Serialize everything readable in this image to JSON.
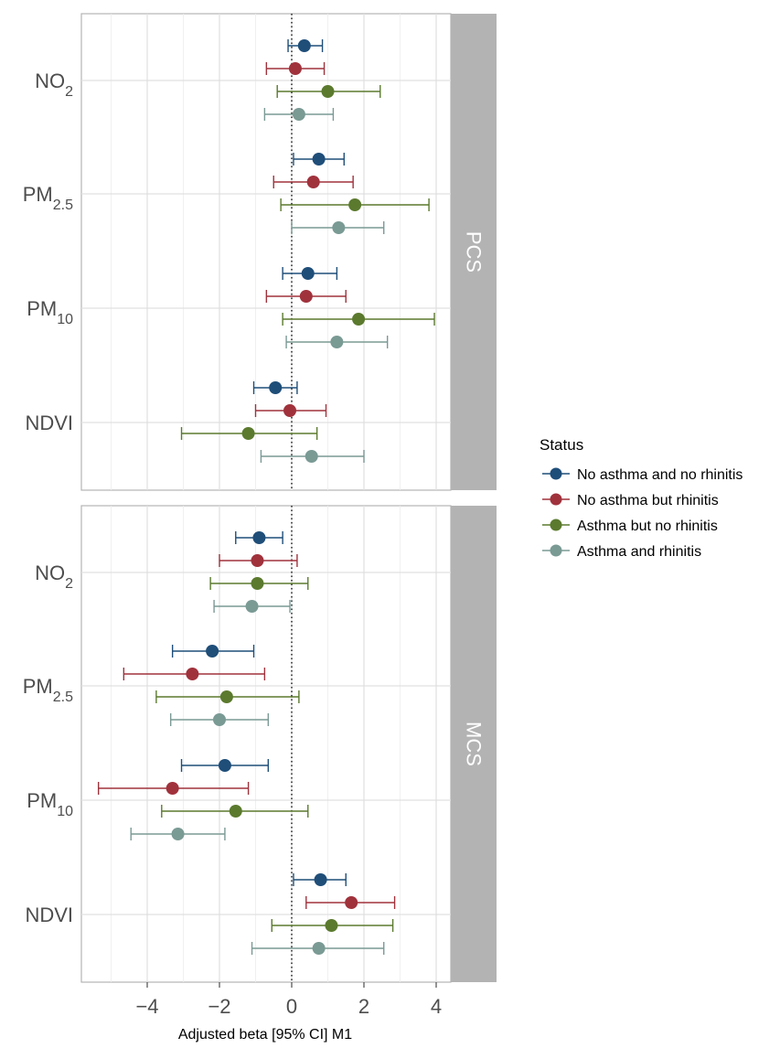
{
  "chart_data": {
    "type": "forest",
    "xlabel": "Adjusted beta [95% CI] M1",
    "xticks": [
      -4,
      -2,
      0,
      2,
      4
    ],
    "xlim": [
      -5.8,
      4.4
    ],
    "reference_line": 0,
    "grid": true,
    "legend": {
      "title": "Status",
      "placement": "right",
      "entries": [
        "No asthma and no rhinitis",
        "No asthma but rhinitis",
        "Asthma but no rhinitis",
        "Asthma and rhinitis"
      ]
    },
    "categories": [
      "NO2",
      "PM2.5",
      "PM10",
      "NDVI"
    ],
    "series_colors": {
      "No asthma and no rhinitis": "#1f4e79",
      "No asthma but rhinitis": "#a0323c",
      "Asthma but no rhinitis": "#5b7a2e",
      "Asthma and rhinitis": "#7a9a94"
    },
    "panels": [
      {
        "name": "PCS",
        "rows": [
          {
            "category": "NO2",
            "points": [
              {
                "series": "No asthma and no rhinitis",
                "estimate": 0.35,
                "lower": -0.1,
                "upper": 0.85
              },
              {
                "series": "No asthma but rhinitis",
                "estimate": 0.1,
                "lower": -0.7,
                "upper": 0.9
              },
              {
                "series": "Asthma but no rhinitis",
                "estimate": 1.0,
                "lower": -0.4,
                "upper": 2.45
              },
              {
                "series": "Asthma and rhinitis",
                "estimate": 0.2,
                "lower": -0.75,
                "upper": 1.15
              }
            ]
          },
          {
            "category": "PM2.5",
            "points": [
              {
                "series": "No asthma and no rhinitis",
                "estimate": 0.75,
                "lower": 0.05,
                "upper": 1.45
              },
              {
                "series": "No asthma but rhinitis",
                "estimate": 0.6,
                "lower": -0.5,
                "upper": 1.7
              },
              {
                "series": "Asthma but no rhinitis",
                "estimate": 1.75,
                "lower": -0.3,
                "upper": 3.8
              },
              {
                "series": "Asthma and rhinitis",
                "estimate": 1.3,
                "lower": 0.0,
                "upper": 2.55
              }
            ]
          },
          {
            "category": "PM10",
            "points": [
              {
                "series": "No asthma and no rhinitis",
                "estimate": 0.45,
                "lower": -0.25,
                "upper": 1.25
              },
              {
                "series": "No asthma but rhinitis",
                "estimate": 0.4,
                "lower": -0.7,
                "upper": 1.5
              },
              {
                "series": "Asthma but no rhinitis",
                "estimate": 1.85,
                "lower": -0.25,
                "upper": 3.95
              },
              {
                "series": "Asthma and rhinitis",
                "estimate": 1.25,
                "lower": -0.15,
                "upper": 2.65
              }
            ]
          },
          {
            "category": "NDVI",
            "points": [
              {
                "series": "No asthma and no rhinitis",
                "estimate": -0.45,
                "lower": -1.05,
                "upper": 0.15
              },
              {
                "series": "No asthma but rhinitis",
                "estimate": -0.05,
                "lower": -1.0,
                "upper": 0.95
              },
              {
                "series": "Asthma but no rhinitis",
                "estimate": -1.2,
                "lower": -3.05,
                "upper": 0.7
              },
              {
                "series": "Asthma and rhinitis",
                "estimate": 0.55,
                "lower": -0.85,
                "upper": 2.0
              }
            ]
          }
        ]
      },
      {
        "name": "MCS",
        "rows": [
          {
            "category": "NO2",
            "points": [
              {
                "series": "No asthma and no rhinitis",
                "estimate": -0.9,
                "lower": -1.55,
                "upper": -0.25
              },
              {
                "series": "No asthma but rhinitis",
                "estimate": -0.95,
                "lower": -2.0,
                "upper": 0.15
              },
              {
                "series": "Asthma but no rhinitis",
                "estimate": -0.95,
                "lower": -2.25,
                "upper": 0.45
              },
              {
                "series": "Asthma and rhinitis",
                "estimate": -1.1,
                "lower": -2.15,
                "upper": -0.05
              }
            ]
          },
          {
            "category": "PM2.5",
            "points": [
              {
                "series": "No asthma and no rhinitis",
                "estimate": -2.2,
                "lower": -3.3,
                "upper": -1.05
              },
              {
                "series": "No asthma but rhinitis",
                "estimate": -2.75,
                "lower": -4.65,
                "upper": -0.75
              },
              {
                "series": "Asthma but no rhinitis",
                "estimate": -1.8,
                "lower": -3.75,
                "upper": 0.2
              },
              {
                "series": "Asthma and rhinitis",
                "estimate": -2.0,
                "lower": -3.35,
                "upper": -0.65
              }
            ]
          },
          {
            "category": "PM10",
            "points": [
              {
                "series": "No asthma and no rhinitis",
                "estimate": -1.85,
                "lower": -3.05,
                "upper": -0.65
              },
              {
                "series": "No asthma but rhinitis",
                "estimate": -3.3,
                "lower": -5.35,
                "upper": -1.2
              },
              {
                "series": "Asthma but no rhinitis",
                "estimate": -1.55,
                "lower": -3.6,
                "upper": 0.45
              },
              {
                "series": "Asthma and rhinitis",
                "estimate": -3.15,
                "lower": -4.45,
                "upper": -1.85
              }
            ]
          },
          {
            "category": "NDVI",
            "points": [
              {
                "series": "No asthma and no rhinitis",
                "estimate": 0.8,
                "lower": 0.05,
                "upper": 1.5
              },
              {
                "series": "No asthma but rhinitis",
                "estimate": 1.65,
                "lower": 0.4,
                "upper": 2.85
              },
              {
                "series": "Asthma but no rhinitis",
                "estimate": 1.1,
                "lower": -0.55,
                "upper": 2.8
              },
              {
                "series": "Asthma and rhinitis",
                "estimate": 0.75,
                "lower": -1.1,
                "upper": 2.55
              }
            ]
          }
        ]
      }
    ]
  }
}
